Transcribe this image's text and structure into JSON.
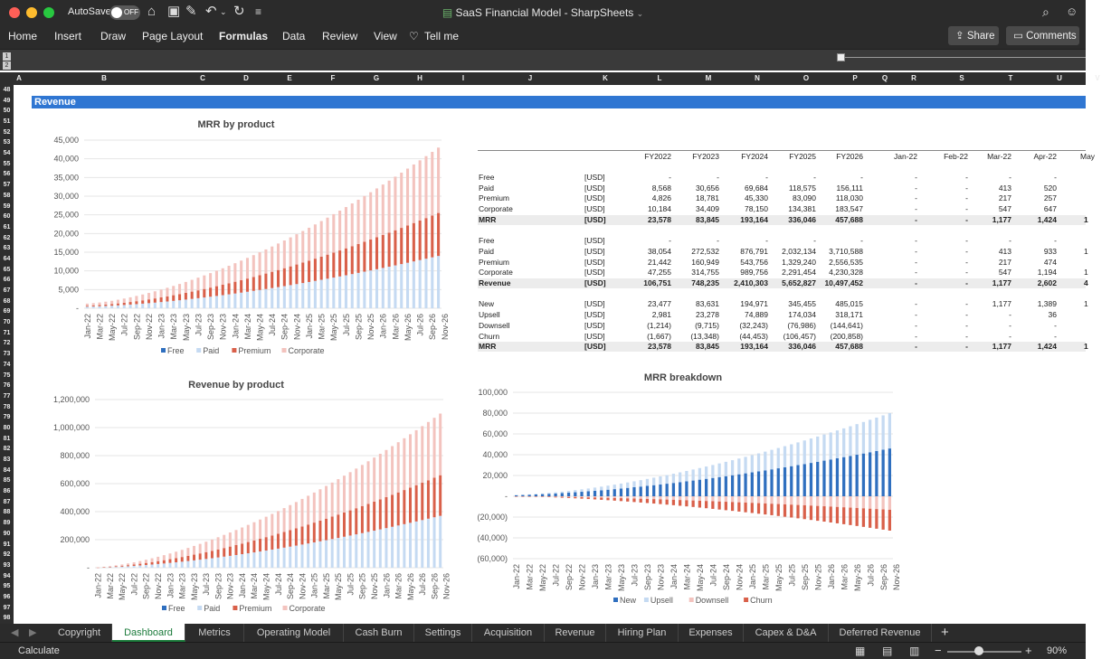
{
  "window": {
    "title": "SaaS Financial Model - SharpSheets",
    "autosave_label": "AutoSave",
    "autosave_state": "OFF"
  },
  "ribbon": {
    "tabs": [
      "Home",
      "Insert",
      "Draw",
      "Page Layout",
      "Formulas",
      "Data",
      "Review",
      "View",
      "Tell me"
    ],
    "share": "Share",
    "comments": "Comments"
  },
  "outline_levels": [
    "1",
    "2"
  ],
  "columns": [
    "A",
    "B",
    "C",
    "D",
    "E",
    "F",
    "G",
    "H",
    "I",
    "J",
    "K",
    "L",
    "M",
    "N",
    "O",
    "P",
    "Q",
    "R",
    "S",
    "T",
    "U",
    "V"
  ],
  "rows_start": 48,
  "rows_end": 98,
  "section_title": "Revenue",
  "charts": {
    "months": [
      "Jan-22",
      "Mar-22",
      "May-22",
      "Jul-22",
      "Sep-22",
      "Nov-22",
      "Jan-23",
      "Mar-23",
      "May-23",
      "Jul-23",
      "Sep-23",
      "Nov-23",
      "Jan-24",
      "Mar-24",
      "May-24",
      "Jul-24",
      "Sep-24",
      "Nov-24",
      "Jan-25",
      "Mar-25",
      "May-25",
      "Jul-25",
      "Sep-25",
      "Nov-25",
      "Jan-26",
      "Mar-26",
      "May-26",
      "Jul-26",
      "Sep-26",
      "Nov-26"
    ],
    "product_legend": [
      "Free",
      "Paid",
      "Premium",
      "Corporate"
    ],
    "breakdown_legend": [
      "New",
      "Upsell",
      "Downsell",
      "Churn"
    ],
    "colors": {
      "free": "#2f6fbf",
      "paid": "#c5daf2",
      "premium": "#d9604a",
      "corporate": "#f3c3be",
      "new": "#2f6fbf",
      "upsell": "#c5daf2",
      "downsell": "#f3c3be",
      "churn": "#d9604a"
    }
  },
  "chart_data": [
    {
      "type": "bar",
      "title": "MRR by product",
      "stacked": true,
      "ylim": [
        0,
        45000
      ],
      "yticks": [
        "45,000",
        "40,000",
        "35,000",
        "30,000",
        "25,000",
        "20,000",
        "15,000",
        "10,000",
        "5,000",
        "-"
      ],
      "series": [
        {
          "name": "Free",
          "start": 0,
          "end": 0
        },
        {
          "name": "Paid",
          "start": 413,
          "end": 14000
        },
        {
          "name": "Premium",
          "start": 217,
          "end": 11500
        },
        {
          "name": "Corporate",
          "start": 547,
          "end": 17500
        }
      ]
    },
    {
      "type": "bar",
      "title": "Revenue by product",
      "stacked": true,
      "ylim": [
        0,
        1200000
      ],
      "yticks": [
        "1,200,000",
        "1,000,000",
        "800,000",
        "600,000",
        "400,000",
        "200,000",
        "-"
      ],
      "series": [
        {
          "name": "Free",
          "start": 0,
          "end": 0
        },
        {
          "name": "Paid",
          "start": 413,
          "end": 370000
        },
        {
          "name": "Premium",
          "start": 217,
          "end": 290000
        },
        {
          "name": "Corporate",
          "start": 547,
          "end": 440000
        }
      ]
    },
    {
      "type": "bar",
      "title": "MRR breakdown",
      "stacked": true,
      "ylim": [
        -60000,
        100000
      ],
      "yticks": [
        "100,000",
        "80,000",
        "60,000",
        "40,000",
        "20,000",
        "-",
        "(20,000)",
        "(40,000)",
        "(60,000)"
      ],
      "series": [
        {
          "name": "New",
          "start": 1177,
          "end": 46000
        },
        {
          "name": "Upsell",
          "start": 0,
          "end": 34000
        },
        {
          "name": "Downsell",
          "start": 0,
          "end": -13000
        },
        {
          "name": "Churn",
          "start": 0,
          "end": -20000
        }
      ]
    }
  ],
  "table": {
    "headers": [
      "FY2022",
      "FY2023",
      "FY2024",
      "FY2025",
      "FY2026",
      "Jan-22",
      "Feb-22",
      "Mar-22",
      "Apr-22",
      "May"
    ],
    "rows": [
      {
        "label": "Free",
        "unit": "[USD]",
        "bold": false,
        "values": [
          "-",
          "-",
          "-",
          "-",
          "-",
          "-",
          "-",
          "-",
          "-",
          ""
        ]
      },
      {
        "label": "Paid",
        "unit": "[USD]",
        "bold": false,
        "values": [
          "8,568",
          "30,656",
          "69,684",
          "118,575",
          "156,111",
          "-",
          "-",
          "413",
          "520",
          ""
        ]
      },
      {
        "label": "Premium",
        "unit": "[USD]",
        "bold": false,
        "values": [
          "4,826",
          "18,781",
          "45,330",
          "83,090",
          "118,030",
          "-",
          "-",
          "217",
          "257",
          ""
        ]
      },
      {
        "label": "Corporate",
        "unit": "[USD]",
        "bold": false,
        "values": [
          "10,184",
          "34,409",
          "78,150",
          "134,381",
          "183,547",
          "-",
          "-",
          "547",
          "647",
          ""
        ]
      },
      {
        "label": "MRR",
        "unit": "[USD]",
        "bold": true,
        "values": [
          "23,578",
          "83,845",
          "193,164",
          "336,046",
          "457,688",
          "-",
          "-",
          "1,177",
          "1,424",
          "1"
        ]
      },
      {
        "label": "",
        "unit": "",
        "bold": false,
        "values": [
          "",
          "",
          "",
          "",
          "",
          "",
          "",
          "",
          "",
          ""
        ]
      },
      {
        "label": "Free",
        "unit": "[USD]",
        "bold": false,
        "values": [
          "-",
          "-",
          "-",
          "-",
          "-",
          "-",
          "-",
          "-",
          "-",
          ""
        ]
      },
      {
        "label": "Paid",
        "unit": "[USD]",
        "bold": false,
        "values": [
          "38,054",
          "272,532",
          "876,791",
          "2,032,134",
          "3,710,588",
          "-",
          "-",
          "413",
          "933",
          "1"
        ]
      },
      {
        "label": "Premium",
        "unit": "[USD]",
        "bold": false,
        "values": [
          "21,442",
          "160,949",
          "543,756",
          "1,329,240",
          "2,556,535",
          "-",
          "-",
          "217",
          "474",
          ""
        ]
      },
      {
        "label": "Corporate",
        "unit": "[USD]",
        "bold": false,
        "values": [
          "47,255",
          "314,755",
          "989,756",
          "2,291,454",
          "4,230,328",
          "-",
          "-",
          "547",
          "1,194",
          "1"
        ]
      },
      {
        "label": "Revenue",
        "unit": "[USD]",
        "bold": true,
        "values": [
          "106,751",
          "748,235",
          "2,410,303",
          "5,652,827",
          "10,497,452",
          "-",
          "-",
          "1,177",
          "2,602",
          "4"
        ]
      },
      {
        "label": "",
        "unit": "",
        "bold": false,
        "values": [
          "",
          "",
          "",
          "",
          "",
          "",
          "",
          "",
          "",
          ""
        ]
      },
      {
        "label": "New",
        "unit": "[USD]",
        "bold": false,
        "values": [
          "23,477",
          "83,631",
          "194,971",
          "345,455",
          "485,015",
          "-",
          "-",
          "1,177",
          "1,389",
          "1"
        ]
      },
      {
        "label": "Upsell",
        "unit": "[USD]",
        "bold": false,
        "values": [
          "2,981",
          "23,278",
          "74,889",
          "174,034",
          "318,171",
          "-",
          "-",
          "-",
          "36",
          ""
        ]
      },
      {
        "label": "Downsell",
        "unit": "[USD]",
        "bold": false,
        "values": [
          "(1,214)",
          "(9,715)",
          "(32,243)",
          "(76,986)",
          "(144,641)",
          "-",
          "-",
          "-",
          "-",
          ""
        ]
      },
      {
        "label": "Churn",
        "unit": "[USD]",
        "bold": false,
        "values": [
          "(1,667)",
          "(13,348)",
          "(44,453)",
          "(106,457)",
          "(200,858)",
          "-",
          "-",
          "-",
          "-",
          ""
        ]
      },
      {
        "label": "MRR",
        "unit": "[USD]",
        "bold": true,
        "values": [
          "23,578",
          "83,845",
          "193,164",
          "336,046",
          "457,688",
          "-",
          "-",
          "1,177",
          "1,424",
          "1"
        ]
      }
    ]
  },
  "sheet_tabs": [
    "Copyright",
    "Dashboard",
    "Metrics",
    "Operating Model",
    "Cash Burn",
    "Settings",
    "Acquisition",
    "Revenue",
    "Hiring Plan",
    "Expenses",
    "Capex & D&A",
    "Deferred Revenue"
  ],
  "active_tab": "Dashboard",
  "status": {
    "text": "Calculate",
    "zoom": "90%"
  }
}
